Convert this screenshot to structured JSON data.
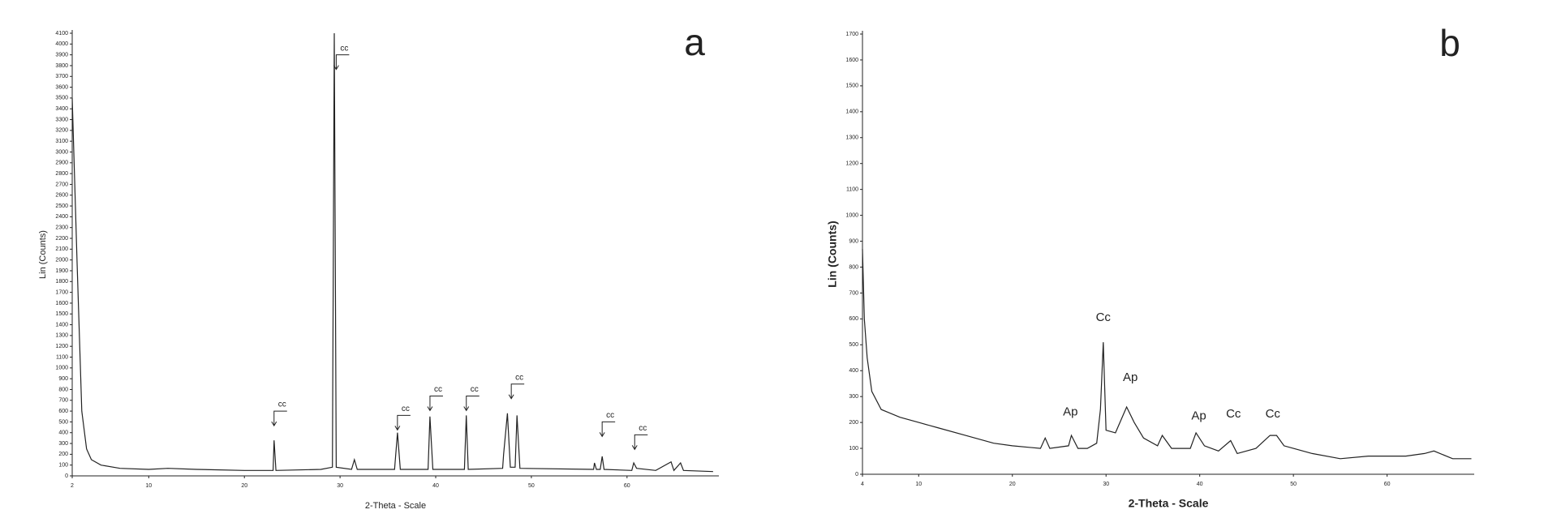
{
  "chart_data": [
    {
      "type": "line",
      "panel": "a",
      "x_label": "2-Theta - Scale",
      "y_label": "Lin (Counts)",
      "color": "#222222",
      "bold_labels": false,
      "xlim": [
        2,
        69.6
      ],
      "xticks": [
        2,
        10,
        20,
        30,
        40,
        50,
        60
      ],
      "ylim": [
        0,
        4100
      ],
      "yticks": [
        0,
        100,
        200,
        300,
        400,
        500,
        600,
        700,
        800,
        900,
        1000,
        1100,
        1200,
        1300,
        1400,
        1500,
        1600,
        1700,
        1800,
        1900,
        2000,
        2100,
        2200,
        2300,
        2400,
        2500,
        2600,
        2700,
        2800,
        2900,
        3000,
        3100,
        3200,
        3300,
        3400,
        3500,
        3600,
        3700,
        3800,
        3900,
        4000,
        4100
      ],
      "x": [
        2,
        2.5,
        3,
        3.5,
        4,
        5,
        7,
        10,
        12,
        15,
        20,
        22,
        23,
        23.1,
        23.3,
        28,
        29.2,
        29.4,
        29.6,
        31.2,
        31.5,
        31.8,
        35.7,
        36,
        36.3,
        39.2,
        39.4,
        39.7,
        43,
        43.2,
        43.4,
        47,
        47.1,
        47.5,
        47.8,
        48.3,
        48.5,
        48.8,
        56.5,
        56.6,
        56.8,
        57.2,
        57.4,
        57.6,
        60.5,
        60.7,
        61,
        63,
        64.6,
        64.9,
        65.6,
        65.9,
        69
      ],
      "values": [
        3500,
        2000,
        600,
        250,
        150,
        100,
        70,
        60,
        70,
        60,
        50,
        50,
        50,
        330,
        50,
        60,
        80,
        4100,
        80,
        60,
        150,
        60,
        60,
        400,
        60,
        60,
        550,
        60,
        60,
        560,
        60,
        70,
        200,
        580,
        80,
        80,
        560,
        70,
        60,
        120,
        60,
        60,
        180,
        60,
        50,
        120,
        70,
        50,
        130,
        50,
        120,
        50,
        40
      ],
      "annotations": [
        {
          "text": "cc",
          "x": 23.1,
          "y": 600,
          "arrow": true
        },
        {
          "text": "cc",
          "x": 29.6,
          "y": 3900,
          "arrow": true
        },
        {
          "text": "cc",
          "x": 36,
          "y": 560,
          "arrow": true
        },
        {
          "text": "cc",
          "x": 39.4,
          "y": 740,
          "arrow": true
        },
        {
          "text": "cc",
          "x": 43.2,
          "y": 740,
          "arrow": true
        },
        {
          "text": "cc",
          "x": 47.9,
          "y": 850,
          "arrow": true
        },
        {
          "text": "cc",
          "x": 57.4,
          "y": 500,
          "arrow": true
        },
        {
          "text": "cc",
          "x": 60.8,
          "y": 380,
          "arrow": true
        }
      ]
    },
    {
      "type": "line",
      "panel": "b",
      "x_label": "2-Theta - Scale",
      "y_label": "Lin (Counts)",
      "color": "#222222",
      "bold_labels": true,
      "xlim": [
        4,
        69.3
      ],
      "xticks": [
        4,
        10,
        20,
        30,
        40,
        50,
        60
      ],
      "ylim": [
        0,
        1700
      ],
      "yticks": [
        0,
        100,
        200,
        300,
        400,
        500,
        600,
        700,
        800,
        900,
        1000,
        1100,
        1200,
        1300,
        1400,
        1500,
        1600,
        1700
      ],
      "x": [
        4,
        4.2,
        4.5,
        5,
        6,
        8,
        10,
        12,
        15,
        18,
        20,
        23,
        23.5,
        24,
        26,
        26.3,
        27,
        28,
        29,
        29.4,
        29.7,
        30,
        31,
        32.2,
        33,
        34,
        35.5,
        36,
        37,
        39,
        39.6,
        40.5,
        42,
        43.3,
        44,
        46,
        47.5,
        48.2,
        49,
        50,
        52,
        55,
        58,
        60,
        62,
        64,
        65,
        67,
        69
      ],
      "values": [
        870,
        600,
        450,
        320,
        250,
        220,
        200,
        180,
        150,
        120,
        110,
        100,
        140,
        100,
        110,
        150,
        100,
        100,
        120,
        250,
        510,
        170,
        160,
        260,
        200,
        140,
        110,
        150,
        100,
        100,
        160,
        110,
        90,
        130,
        80,
        100,
        150,
        150,
        110,
        100,
        80,
        60,
        70,
        70,
        70,
        80,
        90,
        60,
        60
      ],
      "annotations": [
        {
          "text": "Cc",
          "x": 29.7,
          "y": 604,
          "arrow": false
        },
        {
          "text": "Ap",
          "x": 26.2,
          "y": 240,
          "arrow": false
        },
        {
          "text": "Ap",
          "x": 32.6,
          "y": 372,
          "arrow": false
        },
        {
          "text": "Ap",
          "x": 39.9,
          "y": 224,
          "arrow": false
        },
        {
          "text": "Cc",
          "x": 43.6,
          "y": 232,
          "arrow": false
        },
        {
          "text": "Cc",
          "x": 47.8,
          "y": 232,
          "arrow": false
        }
      ]
    }
  ]
}
